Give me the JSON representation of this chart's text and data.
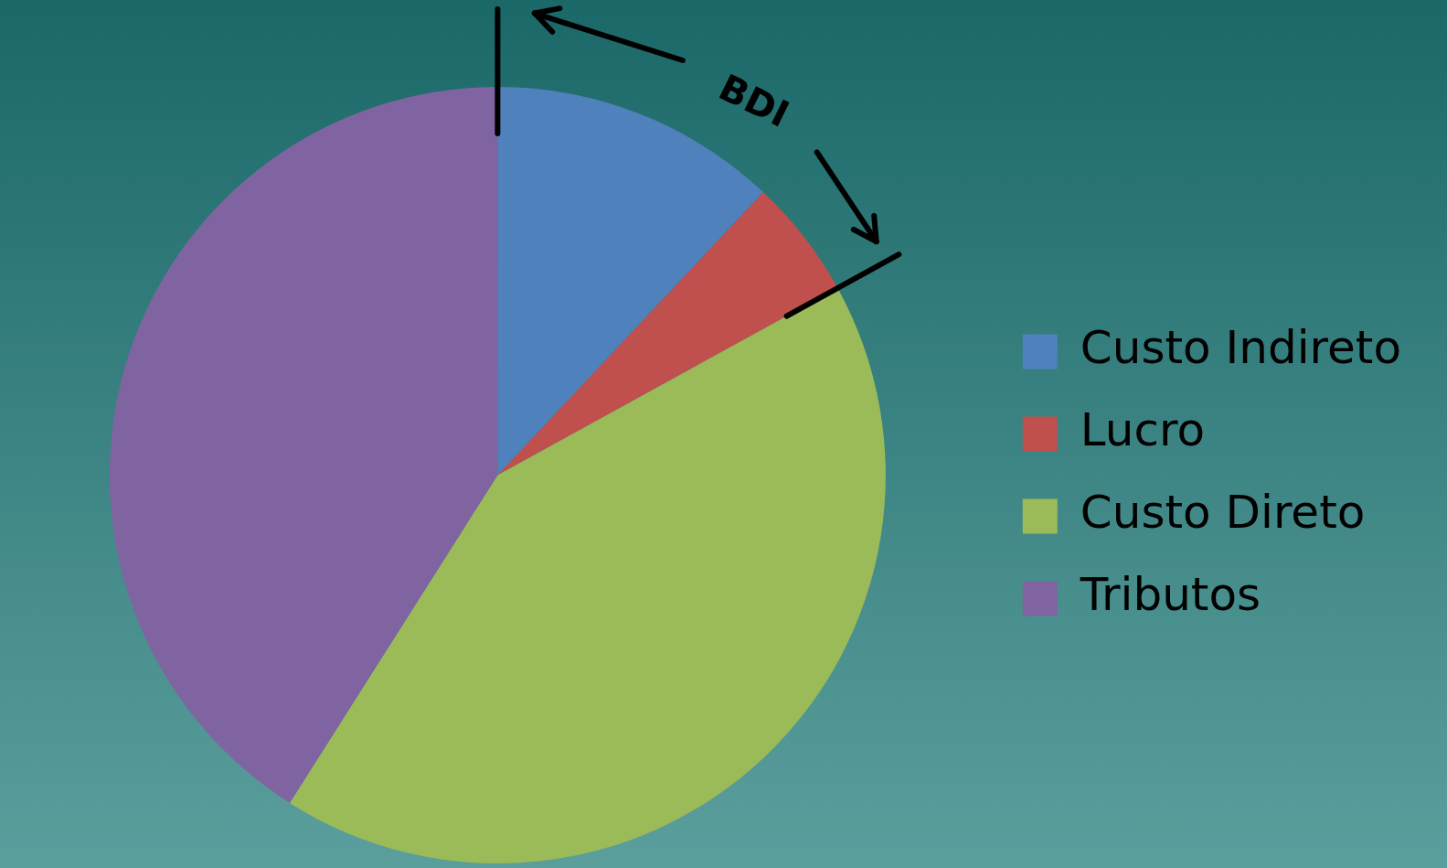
{
  "chart_data": {
    "type": "pie",
    "categories": [
      "Custo Indireto",
      "Lucro",
      "Custo Direto",
      "Tributos"
    ],
    "values": [
      12,
      5,
      42,
      41
    ],
    "colors": [
      "#4f81bd",
      "#c0504d",
      "#9bbb59",
      "#8064a2"
    ],
    "legend": "right",
    "annotations": [
      "BDI"
    ]
  }
}
